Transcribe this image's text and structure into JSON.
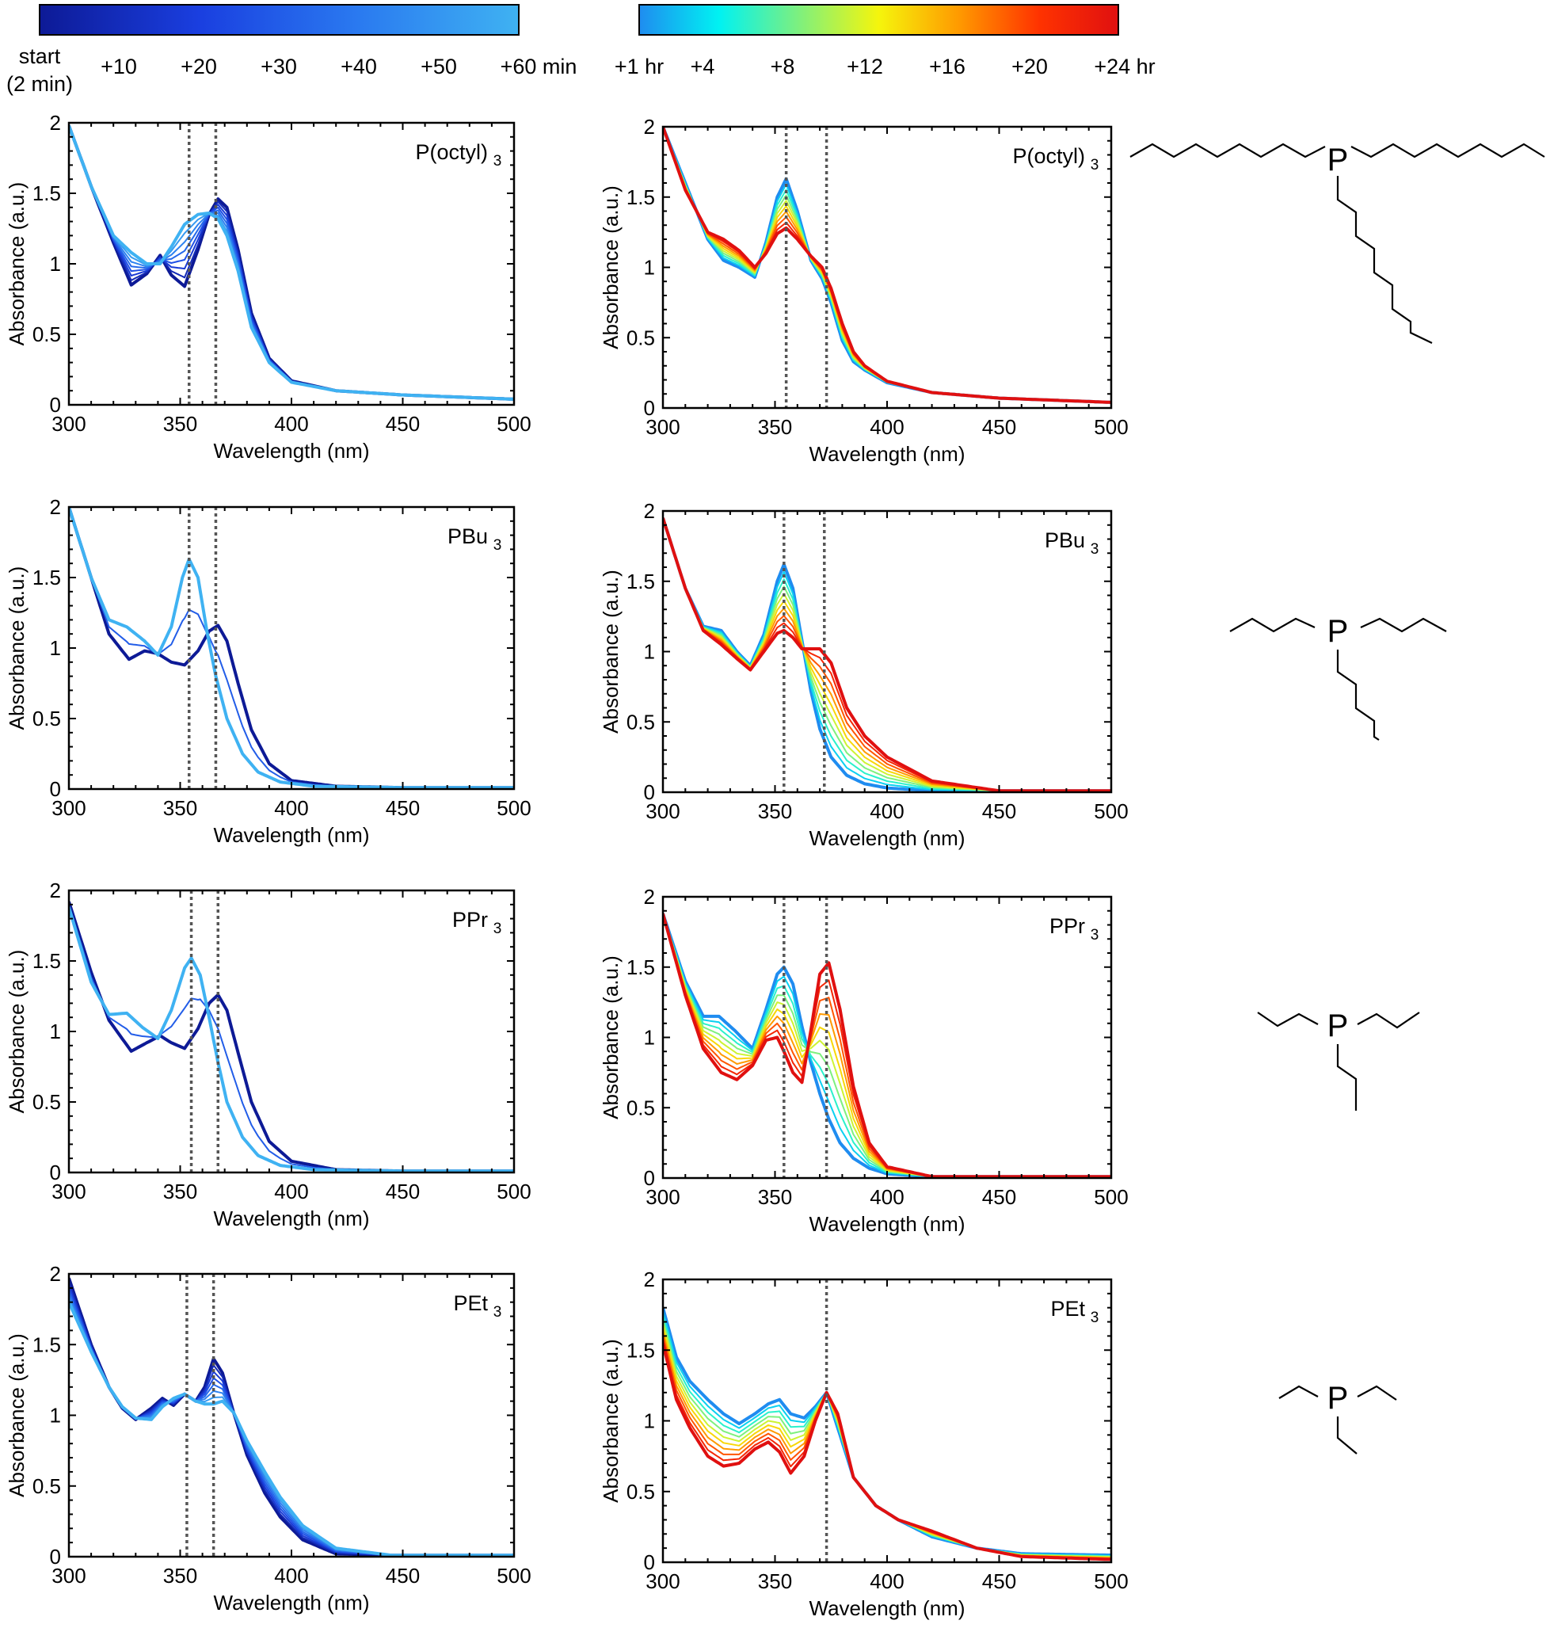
{
  "colorbars": {
    "minutes": {
      "labels": [
        "start",
        "(2 min)",
        "+10",
        "+20",
        "+30",
        "+40",
        "+50",
        "+60 min"
      ],
      "colors": [
        "#0d1a96",
        "#1a3fe0",
        "#2a7af0",
        "#3fb2f2"
      ]
    },
    "hours": {
      "labels": [
        "+1 hr",
        "+4",
        "+8",
        "+12",
        "+16",
        "+20",
        "+24 hr"
      ],
      "colors": [
        "#1f8cf0",
        "#00f2f2",
        "#7ef07e",
        "#f5f50c",
        "#ff9a00",
        "#ff3300",
        "#e01010"
      ]
    }
  },
  "dotted_line_color": "#555555",
  "chart_data": [
    {
      "type": "line",
      "panel": "P(octyl)3 minutes",
      "title": "P(octyl)",
      "title_sub": "3",
      "xlabel": "Wavelength (nm)",
      "ylabel": "Absorbance (a.u.)",
      "xlim": [
        300,
        500
      ],
      "ylim": [
        0,
        2
      ],
      "xticks": [
        "300",
        "350",
        "400",
        "450",
        "500"
      ],
      "yticks": [
        "0",
        "0.5",
        "1",
        "1.5",
        "2"
      ],
      "vlines": [
        354,
        366
      ],
      "palette": "minutes",
      "n_series": 8,
      "series_first": {
        "x": [
          300,
          310,
          320,
          328,
          335,
          341,
          346,
          352,
          358,
          363,
          367,
          371,
          376,
          382,
          390,
          400,
          420,
          450,
          500
        ],
        "y": [
          1.98,
          1.55,
          1.15,
          0.85,
          0.93,
          1.06,
          0.92,
          0.84,
          1.1,
          1.35,
          1.46,
          1.4,
          1.1,
          0.65,
          0.33,
          0.17,
          0.1,
          0.07,
          0.04
        ]
      },
      "series_last": {
        "x": [
          300,
          310,
          320,
          328,
          335,
          341,
          346,
          352,
          358,
          363,
          367,
          371,
          376,
          382,
          390,
          400,
          420,
          450,
          500
        ],
        "y": [
          1.98,
          1.55,
          1.2,
          1.08,
          1.0,
          1.0,
          1.12,
          1.28,
          1.35,
          1.36,
          1.32,
          1.2,
          0.95,
          0.55,
          0.3,
          0.16,
          0.1,
          0.07,
          0.04
        ]
      }
    },
    {
      "type": "line",
      "panel": "P(octyl)3 hours",
      "title": "P(octyl)",
      "title_sub": "3",
      "xlabel": "Wavelength (nm)",
      "ylabel": "Absorbance (a.u.)",
      "xlim": [
        300,
        500
      ],
      "ylim": [
        0,
        2
      ],
      "xticks": [
        "300",
        "350",
        "400",
        "450",
        "500"
      ],
      "yticks": [
        "0",
        "0.5",
        "1",
        "1.5",
        "2"
      ],
      "vlines": [
        355,
        373
      ],
      "palette": "hours",
      "n_series": 10,
      "series_first": {
        "x": [
          300,
          310,
          320,
          327,
          334,
          341,
          346,
          351,
          355,
          360,
          366,
          371,
          375,
          380,
          385,
          390,
          400,
          420,
          450,
          500
        ],
        "y": [
          2.0,
          1.6,
          1.2,
          1.05,
          1.0,
          0.93,
          1.18,
          1.5,
          1.63,
          1.4,
          1.05,
          0.92,
          0.75,
          0.48,
          0.33,
          0.27,
          0.18,
          0.11,
          0.07,
          0.04
        ]
      },
      "series_last": {
        "x": [
          300,
          310,
          320,
          327,
          334,
          341,
          346,
          351,
          355,
          360,
          366,
          371,
          375,
          380,
          385,
          390,
          400,
          420,
          450,
          500
        ],
        "y": [
          2.0,
          1.55,
          1.25,
          1.2,
          1.12,
          1.0,
          1.1,
          1.24,
          1.28,
          1.2,
          1.08,
          1.0,
          0.85,
          0.6,
          0.4,
          0.3,
          0.19,
          0.11,
          0.07,
          0.04
        ]
      }
    },
    {
      "type": "line",
      "panel": "PBu3 minutes",
      "title": "PBu",
      "title_sub": "3",
      "xlabel": "Wavelength (nm)",
      "ylabel": "Absorbance (a.u.)",
      "xlim": [
        300,
        500
      ],
      "ylim": [
        0,
        2
      ],
      "xticks": [
        "300",
        "350",
        "400",
        "450",
        "500"
      ],
      "yticks": [
        "0",
        "0.5",
        "1",
        "1.5",
        "2"
      ],
      "vlines": [
        354,
        366
      ],
      "palette": "minutes",
      "n_series": 3,
      "series_first": {
        "x": [
          300,
          310,
          318,
          327,
          334,
          340,
          346,
          352,
          358,
          363,
          367,
          371,
          376,
          382,
          390,
          400,
          420,
          450,
          500
        ],
        "y": [
          2.0,
          1.5,
          1.1,
          0.92,
          0.98,
          0.96,
          0.9,
          0.88,
          0.98,
          1.12,
          1.16,
          1.05,
          0.75,
          0.42,
          0.18,
          0.06,
          0.02,
          0.01,
          0.01
        ]
      },
      "series_last": {
        "x": [
          300,
          310,
          318,
          326,
          334,
          340,
          346,
          351,
          354,
          358,
          362,
          366,
          371,
          378,
          385,
          395,
          410,
          450,
          500
        ],
        "y": [
          2.0,
          1.5,
          1.2,
          1.15,
          1.05,
          0.95,
          1.15,
          1.5,
          1.63,
          1.5,
          1.12,
          0.8,
          0.5,
          0.25,
          0.12,
          0.05,
          0.02,
          0.01,
          0.01
        ]
      }
    },
    {
      "type": "line",
      "panel": "PBu3 hours",
      "title": "PBu",
      "title_sub": "3",
      "xlabel": "Wavelength (nm)",
      "ylabel": "Absorbance (a.u.)",
      "xlim": [
        300,
        500
      ],
      "ylim": [
        0,
        2
      ],
      "xticks": [
        "300",
        "350",
        "400",
        "450",
        "500"
      ],
      "yticks": [
        "0",
        "0.5",
        "1",
        "1.5",
        "2"
      ],
      "vlines": [
        354,
        372
      ],
      "palette": "hours",
      "n_series": 10,
      "series_first": {
        "x": [
          300,
          310,
          318,
          326,
          333,
          339,
          345,
          351,
          354,
          358,
          362,
          366,
          370,
          375,
          382,
          390,
          400,
          420,
          450,
          500
        ],
        "y": [
          1.95,
          1.45,
          1.18,
          1.15,
          1.0,
          0.9,
          1.12,
          1.5,
          1.62,
          1.45,
          1.08,
          0.72,
          0.45,
          0.25,
          0.12,
          0.06,
          0.03,
          0.01,
          0.01,
          0.01
        ]
      },
      "series_last": {
        "x": [
          300,
          310,
          318,
          326,
          333,
          339,
          345,
          351,
          354,
          358,
          362,
          366,
          370,
          375,
          382,
          390,
          400,
          420,
          450,
          500
        ],
        "y": [
          1.95,
          1.45,
          1.15,
          1.05,
          0.95,
          0.87,
          1.0,
          1.13,
          1.15,
          1.1,
          1.02,
          1.02,
          1.02,
          0.92,
          0.6,
          0.4,
          0.25,
          0.08,
          0.01,
          0.01
        ]
      }
    },
    {
      "type": "line",
      "panel": "PPr3 minutes",
      "title": "PPr",
      "title_sub": "3",
      "xlabel": "Wavelength (nm)",
      "ylabel": "Absorbance (a.u.)",
      "xlim": [
        300,
        500
      ],
      "ylim": [
        0,
        2
      ],
      "xticks": [
        "300",
        "350",
        "400",
        "450",
        "500"
      ],
      "yticks": [
        "0",
        "0.5",
        "1",
        "1.5",
        "2"
      ],
      "vlines": [
        355,
        367
      ],
      "palette": "minutes",
      "n_series": 3,
      "series_first": {
        "x": [
          300,
          310,
          318,
          328,
          335,
          341,
          346,
          352,
          358,
          363,
          367,
          371,
          376,
          382,
          390,
          400,
          420,
          450,
          500
        ],
        "y": [
          1.92,
          1.42,
          1.08,
          0.86,
          0.92,
          0.97,
          0.92,
          0.88,
          1.02,
          1.2,
          1.26,
          1.15,
          0.85,
          0.5,
          0.22,
          0.08,
          0.02,
          0.01,
          0.01
        ]
      },
      "series_last": {
        "x": [
          300,
          310,
          318,
          326,
          333,
          340,
          346,
          352,
          355,
          359,
          363,
          367,
          371,
          378,
          385,
          395,
          410,
          450,
          500
        ],
        "y": [
          1.88,
          1.35,
          1.12,
          1.13,
          1.03,
          0.95,
          1.15,
          1.45,
          1.52,
          1.4,
          1.1,
          0.78,
          0.5,
          0.25,
          0.12,
          0.05,
          0.02,
          0.01,
          0.01
        ]
      }
    },
    {
      "type": "line",
      "panel": "PPr3 hours",
      "title": "PPr",
      "title_sub": "3",
      "xlabel": "Wavelength (nm)",
      "ylabel": "Absorbance (a.u.)",
      "xlim": [
        300,
        500
      ],
      "ylim": [
        0,
        2
      ],
      "xticks": [
        "300",
        "350",
        "400",
        "450",
        "500"
      ],
      "yticks": [
        "0",
        "0.5",
        "1",
        "1.5",
        "2"
      ],
      "vlines": [
        354,
        373
      ],
      "palette": "hours",
      "n_series": 10,
      "series_first": {
        "x": [
          300,
          310,
          318,
          325,
          332,
          340,
          346,
          351,
          354,
          358,
          362,
          366,
          370,
          374,
          379,
          385,
          392,
          400,
          420,
          450,
          500
        ],
        "y": [
          1.88,
          1.4,
          1.15,
          1.15,
          1.05,
          0.92,
          1.2,
          1.45,
          1.5,
          1.38,
          1.08,
          0.82,
          0.6,
          0.42,
          0.25,
          0.14,
          0.07,
          0.03,
          0.01,
          0.01,
          0.01
        ]
      },
      "series_last": {
        "x": [
          300,
          310,
          318,
          326,
          333,
          340,
          346,
          351,
          354,
          358,
          362,
          366,
          370,
          374,
          379,
          385,
          392,
          400,
          420,
          450,
          500
        ],
        "y": [
          1.88,
          1.3,
          0.92,
          0.75,
          0.7,
          0.8,
          0.98,
          1.0,
          0.9,
          0.75,
          0.68,
          1.05,
          1.45,
          1.53,
          1.2,
          0.65,
          0.25,
          0.08,
          0.01,
          0.01,
          0.01
        ]
      }
    },
    {
      "type": "line",
      "panel": "PEt3 minutes",
      "title": "PEt",
      "title_sub": "3",
      "xlabel": "Wavelength (nm)",
      "ylabel": "Absorbance (a.u.)",
      "xlim": [
        300,
        500
      ],
      "ylim": [
        0,
        2
      ],
      "xticks": [
        "300",
        "350",
        "400",
        "450",
        "500"
      ],
      "yticks": [
        "0",
        "0.5",
        "1",
        "1.5",
        "2"
      ],
      "vlines": [
        353,
        365
      ],
      "palette": "minutes",
      "n_series": 8,
      "series_first": {
        "x": [
          300,
          310,
          318,
          324,
          330,
          337,
          342,
          347,
          352,
          357,
          361,
          365,
          369,
          374,
          380,
          388,
          395,
          405,
          420,
          445,
          500
        ],
        "y": [
          1.97,
          1.5,
          1.2,
          1.05,
          0.97,
          1.05,
          1.12,
          1.07,
          1.15,
          1.1,
          1.2,
          1.4,
          1.3,
          1.02,
          0.72,
          0.45,
          0.28,
          0.12,
          0.02,
          0.01,
          0.01
        ]
      },
      "series_last": {
        "x": [
          300,
          310,
          318,
          324,
          330,
          337,
          342,
          347,
          352,
          357,
          361,
          365,
          369,
          374,
          380,
          388,
          395,
          405,
          420,
          445,
          500
        ],
        "y": [
          1.8,
          1.45,
          1.2,
          1.06,
          0.98,
          0.97,
          1.06,
          1.12,
          1.15,
          1.1,
          1.08,
          1.08,
          1.1,
          1.02,
          0.82,
          0.6,
          0.42,
          0.22,
          0.06,
          0.01,
          0.01
        ]
      }
    },
    {
      "type": "line",
      "panel": "PEt3 hours",
      "title": "PEt",
      "title_sub": "3",
      "xlabel": "Wavelength (nm)",
      "ylabel": "Absorbance (a.u.)",
      "xlim": [
        300,
        500
      ],
      "ylim": [
        0,
        2
      ],
      "xticks": [
        "300",
        "350",
        "400",
        "450",
        "500"
      ],
      "yticks": [
        "0",
        "0.5",
        "1",
        "1.5",
        "2"
      ],
      "vlines": [
        373
      ],
      "palette": "hours",
      "n_series": 10,
      "series_first": {
        "x": [
          300,
          306,
          312,
          320,
          327,
          334,
          341,
          347,
          352,
          357,
          363,
          368,
          373,
          378,
          385,
          395,
          405,
          420,
          440,
          460,
          500
        ],
        "y": [
          1.8,
          1.45,
          1.28,
          1.15,
          1.05,
          0.98,
          1.05,
          1.12,
          1.15,
          1.05,
          1.02,
          1.1,
          1.2,
          0.95,
          0.6,
          0.4,
          0.3,
          0.18,
          0.1,
          0.06,
          0.05
        ]
      },
      "series_last": {
        "x": [
          300,
          306,
          312,
          320,
          327,
          334,
          341,
          347,
          352,
          357,
          363,
          368,
          373,
          378,
          385,
          395,
          405,
          420,
          440,
          460,
          500
        ],
        "y": [
          1.55,
          1.15,
          0.95,
          0.75,
          0.68,
          0.7,
          0.8,
          0.85,
          0.78,
          0.63,
          0.75,
          1.0,
          1.2,
          1.05,
          0.6,
          0.4,
          0.3,
          0.22,
          0.1,
          0.04,
          0.02
        ]
      }
    }
  ],
  "structures": [
    {
      "panel": "P(octyl)3",
      "atom": "P",
      "chain_carbons": 8
    },
    {
      "panel": "PBu3",
      "atom": "P",
      "chain_carbons": 4
    },
    {
      "panel": "PPr3",
      "atom": "P",
      "chain_carbons": 3
    },
    {
      "panel": "PEt3",
      "atom": "P",
      "chain_carbons": 2
    }
  ]
}
